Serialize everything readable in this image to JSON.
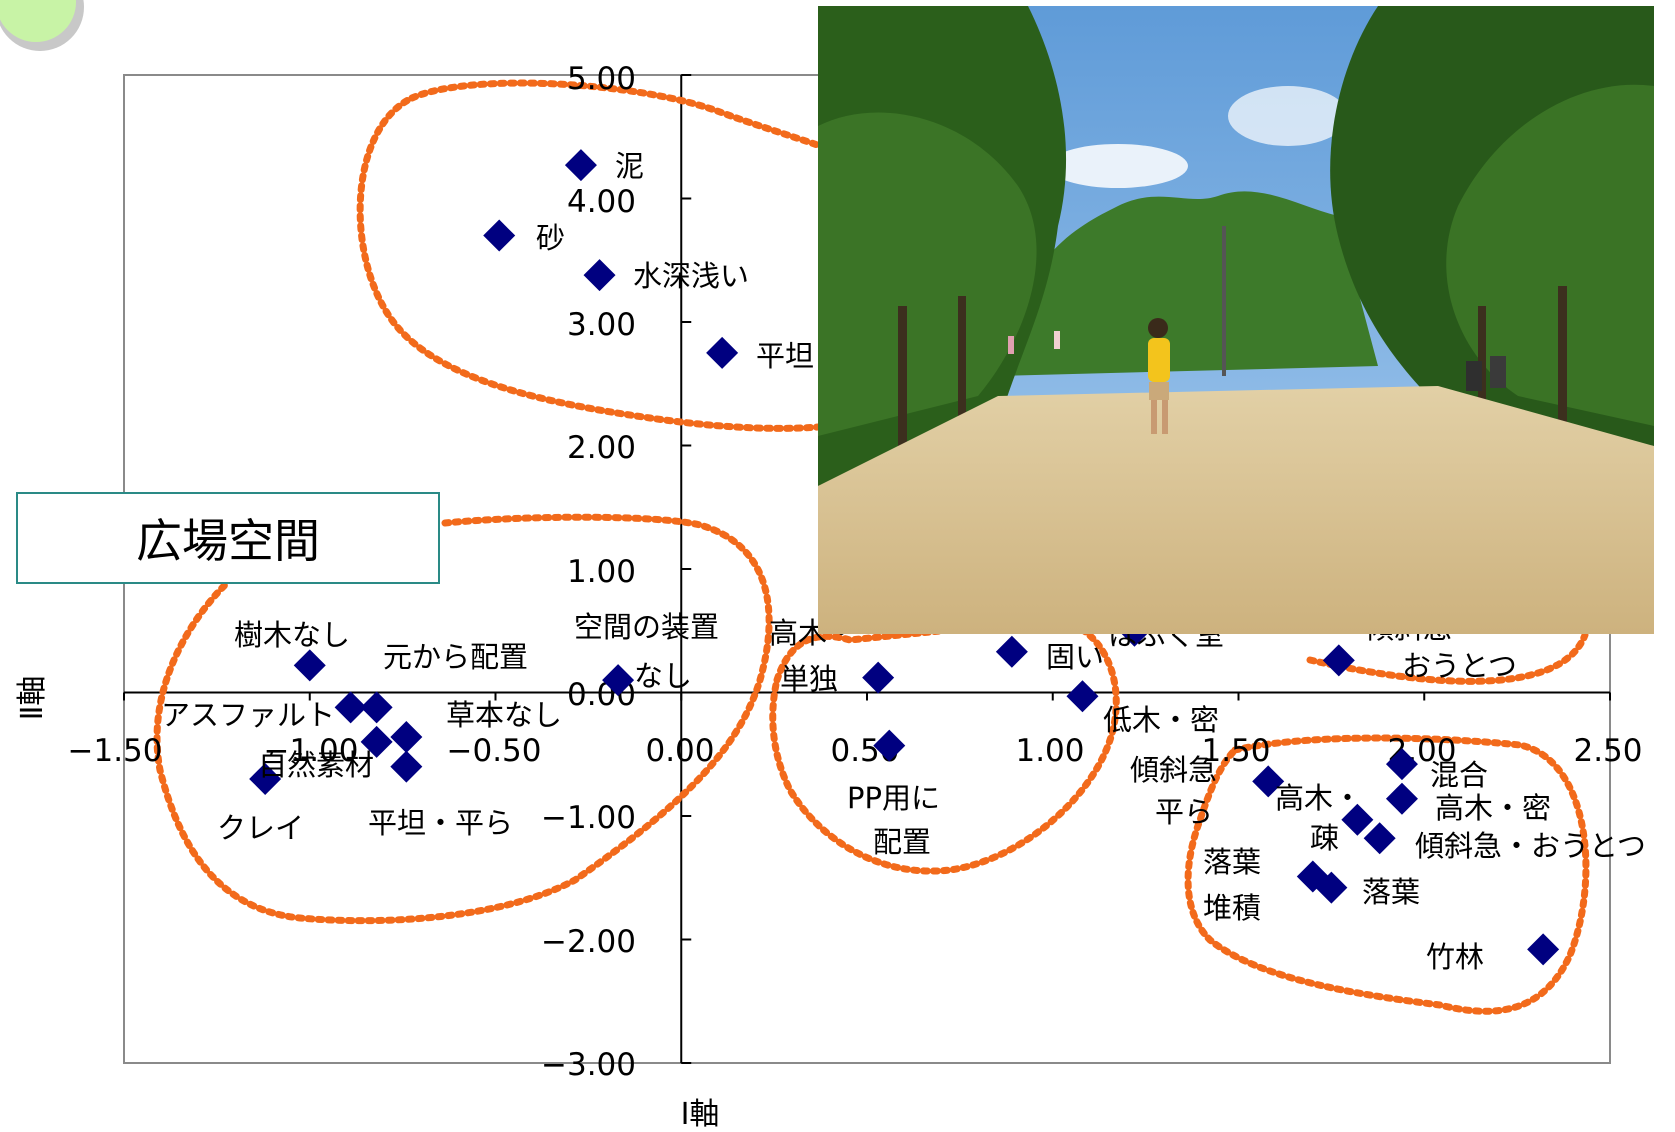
{
  "chart_data": {
    "type": "scatter",
    "title": "広場空間",
    "xlabel": "Ⅰ軸",
    "ylabel": "Ⅱ軸",
    "xlim": [
      -1.5,
      2.5
    ],
    "ylim": [
      -3.0,
      5.0
    ],
    "x_ticks": [
      "−1.50",
      "−1.00",
      "−0.50",
      "0.00",
      "0.50",
      "1.00",
      "1.50",
      "2.00",
      "2.50"
    ],
    "y_ticks": [
      "5.00",
      "4.00",
      "3.00",
      "2.00",
      "1.00",
      "0.00",
      "−1.00",
      "−2.00",
      "−3.00"
    ],
    "marker_color": "#000080",
    "cluster_color": "#f26a1b",
    "grid": false,
    "points": [
      {
        "label": "泥",
        "x": -0.27,
        "y": 4.27
      },
      {
        "label": "砂",
        "x": -0.49,
        "y": 3.7
      },
      {
        "label": "水深浅い",
        "x": -0.22,
        "y": 3.38
      },
      {
        "label": "平坦",
        "x": 0.11,
        "y": 2.75
      },
      {
        "label": "樹木なし",
        "x": -1.0,
        "y": 0.22
      },
      {
        "label": "元から配置",
        "x": -0.82,
        "y": -0.12
      },
      {
        "label": "空間の装置なし",
        "x": -0.17,
        "y": 0.1
      },
      {
        "label": "アスファルト",
        "x": -0.89,
        "y": -0.12
      },
      {
        "label": "草本なし",
        "x": -0.74,
        "y": -0.36
      },
      {
        "label": "自然素材",
        "x": -0.82,
        "y": -0.4
      },
      {
        "label": "平坦・平ら",
        "x": -0.74,
        "y": -0.6
      },
      {
        "label": "クレイ",
        "x": -1.12,
        "y": -0.7
      },
      {
        "label": "高木・単独",
        "x": 0.53,
        "y": 0.12
      },
      {
        "label": "PP用に配置",
        "x": 0.56,
        "y": -0.43
      },
      {
        "label": "固い",
        "x": 0.89,
        "y": 0.33
      },
      {
        "label": "低木・密",
        "x": 1.08,
        "y": -0.03
      },
      {
        "label": "傾斜急・おうとつ",
        "x": 1.77,
        "y": 0.26
      },
      {
        "label": "はぶく室",
        "x": 1.22,
        "y": 0.5
      },
      {
        "label": "傾斜急平ら",
        "x": 1.58,
        "y": -0.72
      },
      {
        "label": "混合",
        "x": 1.94,
        "y": -0.58
      },
      {
        "label": "高木・密",
        "x": 1.94,
        "y": -0.86
      },
      {
        "label": "高木・疎",
        "x": 1.82,
        "y": -1.03
      },
      {
        "label": "傾斜急・おうとつ",
        "x": 1.88,
        "y": -1.18
      },
      {
        "label": "落葉堆積",
        "x": 1.7,
        "y": -1.49
      },
      {
        "label": "落葉",
        "x": 1.75,
        "y": -1.58
      },
      {
        "label": "竹林",
        "x": 2.32,
        "y": -2.08
      }
    ]
  },
  "labels": {
    "title": "広場空間",
    "xlabel": "Ⅰ軸",
    "ylabel": "Ⅱ軸",
    "tick_x": [
      "−1.50",
      "−1.00",
      "−0.50",
      "0.00",
      "0.50",
      "1.00",
      "1.50",
      "2.00",
      "2.50"
    ],
    "tick_y": [
      "5.00",
      "4.00",
      "3.00",
      "2.00",
      "1.00",
      "0.00",
      "−1.00",
      "−2.00",
      "−3.00"
    ],
    "pt": {
      "doro": "泥",
      "suna": "砂",
      "suishin": "水深浅い",
      "heitan": "平坦",
      "jumoku_nashi": "樹木なし",
      "motokara": "元から配置",
      "souchi": "空間の装置",
      "nashi": "なし",
      "asphalt": "アスファルト",
      "souhon_nashi": "草本なし",
      "shizen": "自然素材",
      "heitan_taira": "平坦・平ら",
      "clay": "クレイ",
      "koboku": "高木・",
      "tandoku": "単独",
      "pp1": "PP用に",
      "pp2": "配置",
      "katai": "固い",
      "teiboku_mitsu": "低木・密",
      "habuku": "はぶく室",
      "keisha_frag": "傾斜急・",
      "outotsu": "おうとつ",
      "keisha_kyu": "傾斜急",
      "taira": "平ら",
      "kongou": "混合",
      "kouboku_mitsu": "高木・密",
      "kouboku2": "高木・",
      "so": "疎",
      "keisha_outotsu": "傾斜急・おうとつ",
      "rakuyou1": "落葉",
      "taiseki": "堆積",
      "rakuyou": "落葉",
      "chikurin": "竹林"
    }
  },
  "photo": {
    "sky_color": "#7eb2e3",
    "foliage_color": "#2f6a1e",
    "ground_color": "#d8c393",
    "shirt_color": "#f3c41c"
  }
}
